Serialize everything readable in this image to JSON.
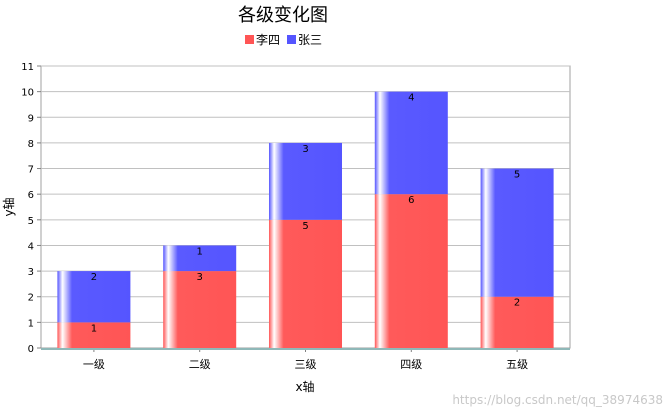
{
  "watermark": "https://blog.csdn.net/qq_38974638",
  "chart_data": {
    "type": "bar",
    "stacked": true,
    "title": "各级变化图",
    "xlabel": "x轴",
    "ylabel": "y轴",
    "ylim": [
      0,
      11
    ],
    "yticks": [
      0,
      1,
      2,
      3,
      4,
      5,
      6,
      7,
      8,
      9,
      10,
      11
    ],
    "grid": true,
    "legend_position": "top",
    "categories": [
      "一级",
      "二级",
      "三级",
      "四级",
      "五级"
    ],
    "series": [
      {
        "name": "李四",
        "values": [
          1,
          3,
          5,
          6,
          2
        ],
        "color": "#ff5555"
      },
      {
        "name": "张三",
        "values": [
          2,
          1,
          3,
          4,
          5
        ],
        "color": "#5555ff"
      }
    ]
  }
}
